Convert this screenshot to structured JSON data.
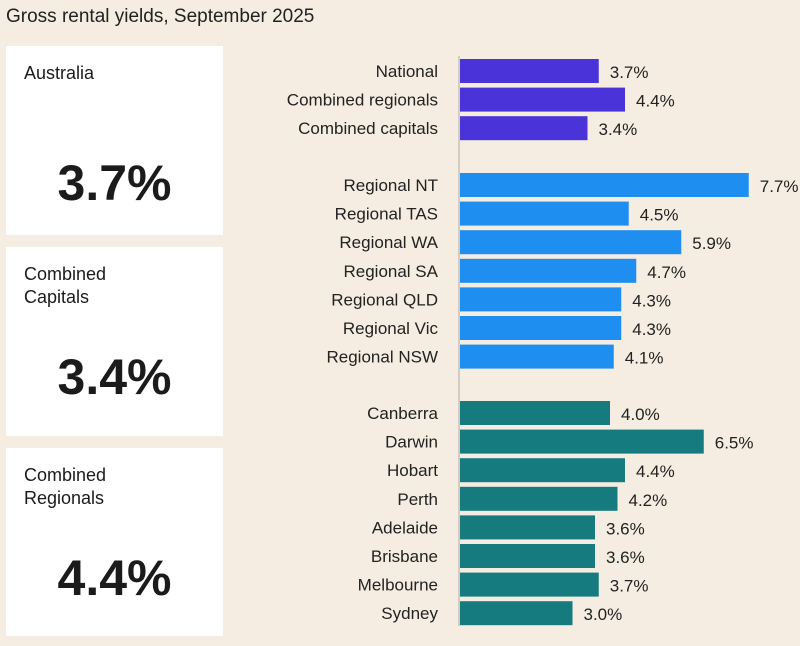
{
  "chart_data": {
    "type": "bar",
    "orientation": "horizontal",
    "title": "Gross rental yields, September 2025",
    "value_format": "{v}%",
    "groups": [
      {
        "color": "#4a34d9",
        "categories": [
          "National",
          "Combined regionals",
          "Combined capitals"
        ],
        "values": [
          3.7,
          4.4,
          3.4
        ]
      },
      {
        "color": "#1e8ef0",
        "categories": [
          "Regional NT",
          "Regional TAS",
          "Regional WA",
          "Regional SA",
          "Regional QLD",
          "Regional Vic",
          "Regional NSW"
        ],
        "values": [
          7.7,
          4.5,
          5.9,
          4.7,
          4.3,
          4.3,
          4.1
        ]
      },
      {
        "color": "#157b7e",
        "categories": [
          "Canberra",
          "Darwin",
          "Hobart",
          "Perth",
          "Adelaide",
          "Brisbane",
          "Melbourne",
          "Sydney"
        ],
        "values": [
          4.0,
          6.5,
          4.4,
          4.2,
          3.6,
          3.6,
          3.7,
          3.0
        ]
      }
    ]
  },
  "summary_cards": [
    {
      "label": "Australia",
      "value": "3.7%"
    },
    {
      "label": "Combined\nCapitals",
      "value": "3.4%"
    },
    {
      "label": "Combined\nRegionals",
      "value": "4.4%"
    }
  ],
  "colors": {
    "background": "#f5ede1",
    "card": "#ffffff",
    "axis": "#c9c2b8"
  }
}
